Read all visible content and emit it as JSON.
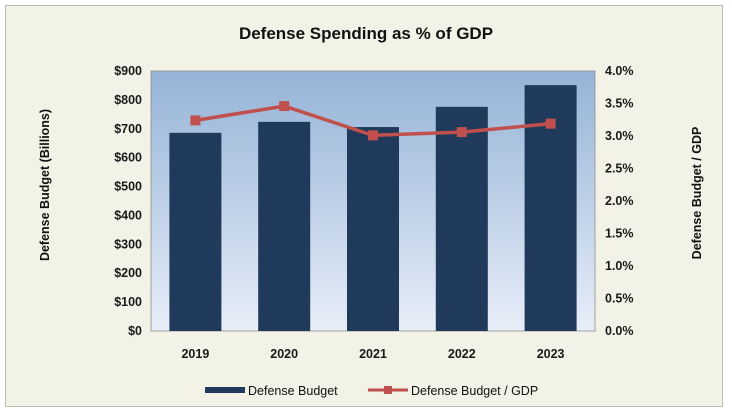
{
  "chart_data": {
    "type": "bar",
    "title": "Defense  Spending as % of GDP",
    "categories": [
      "2019",
      "2020",
      "2021",
      "2022",
      "2023"
    ],
    "series": [
      {
        "name": "Defense Budget",
        "type": "bar",
        "axis": "left",
        "values": [
          686,
          724,
          706,
          776,
          851
        ],
        "color": "#1f3a5a"
      },
      {
        "name": "Defense Budget / GDP",
        "type": "line",
        "axis": "right",
        "values": [
          0.0324,
          0.0346,
          0.0301,
          0.0306,
          0.0319
        ],
        "color": "#c0504d"
      }
    ],
    "ylabel": "Defense Budget (Billions)",
    "y2label": "Defense Budget / GDP",
    "ylim": [
      0,
      900
    ],
    "y2lim": [
      0,
      0.04
    ],
    "yticks": [
      "$0",
      "$100",
      "$200",
      "$300",
      "$400",
      "$500",
      "$600",
      "$700",
      "$800",
      "$900"
    ],
    "y2ticks": [
      "0.0%",
      "0.5%",
      "1.0%",
      "1.5%",
      "2.0%",
      "2.5%",
      "3.0%",
      "3.5%",
      "4.0%"
    ],
    "grid": false,
    "legend_position": "bottom"
  }
}
